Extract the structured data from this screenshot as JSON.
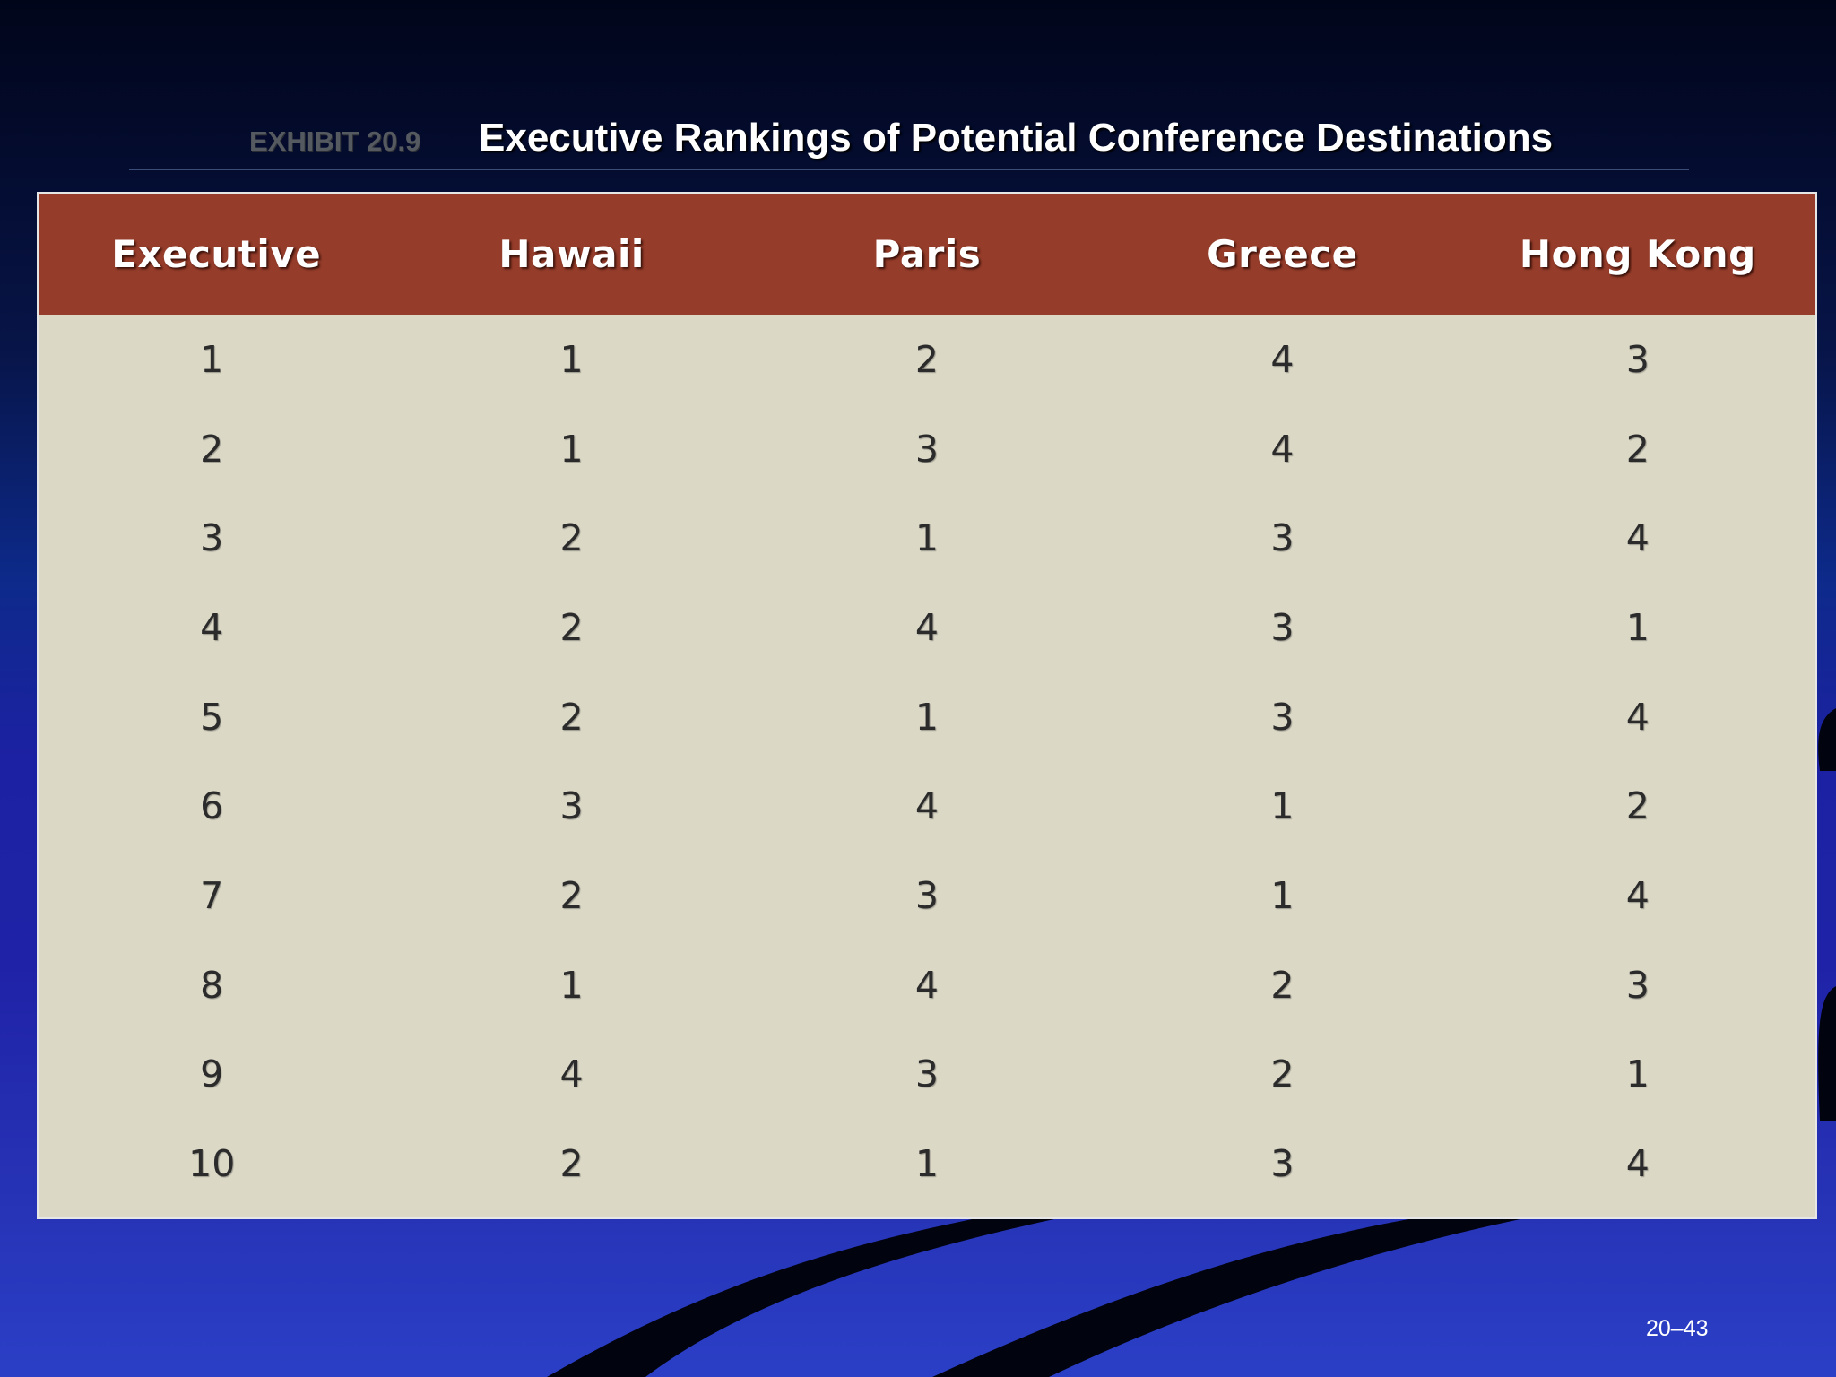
{
  "slide": {
    "exhibit_label": "EXHIBIT 20.9",
    "title": "Executive Rankings of Potential Conference Destinations",
    "page_number": "20–43"
  },
  "table": {
    "headers": [
      "Executive",
      "Hawaii",
      "Paris",
      "Greece",
      "Hong Kong"
    ],
    "rows": [
      [
        "1",
        "1",
        "2",
        "4",
        "3"
      ],
      [
        "2",
        "1",
        "3",
        "4",
        "2"
      ],
      [
        "3",
        "2",
        "1",
        "3",
        "4"
      ],
      [
        "4",
        "2",
        "4",
        "3",
        "1"
      ],
      [
        "5",
        "2",
        "1",
        "3",
        "4"
      ],
      [
        "6",
        "3",
        "4",
        "1",
        "2"
      ],
      [
        "7",
        "2",
        "3",
        "1",
        "4"
      ],
      [
        "8",
        "1",
        "4",
        "2",
        "3"
      ],
      [
        "9",
        "4",
        "3",
        "2",
        "1"
      ],
      [
        "10",
        "2",
        "1",
        "3",
        "4"
      ]
    ]
  },
  "colors": {
    "header_bg": "#953c2a",
    "body_bg": "#dbd8c6",
    "title_text": "#ffffff",
    "exhibit_label_text": "#555a60"
  }
}
